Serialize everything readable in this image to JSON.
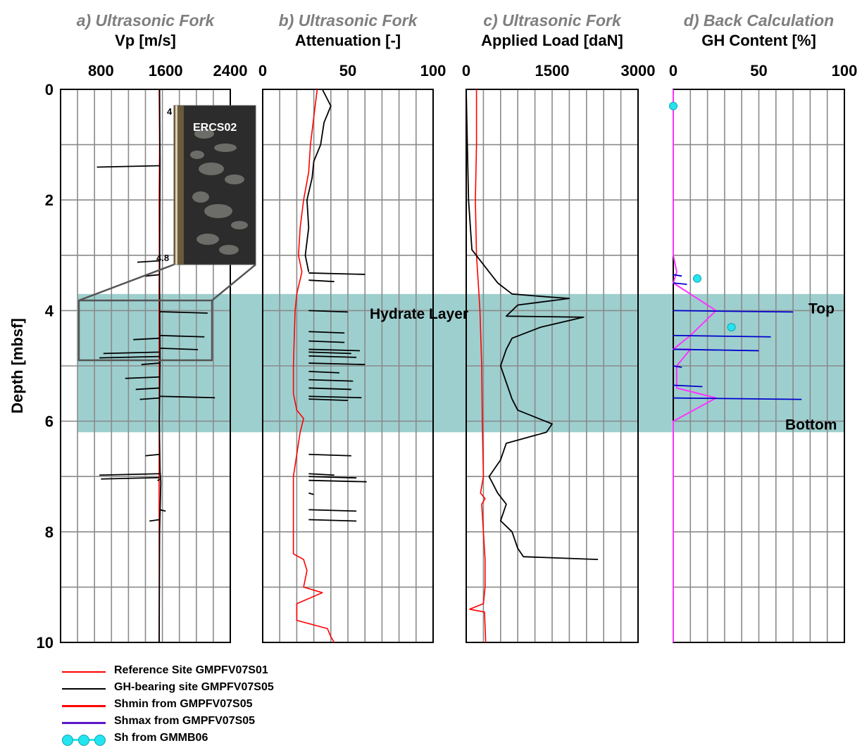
{
  "chart_data": {
    "type": "line",
    "ylabel": "Depth [mbsf]",
    "ylim": [
      10,
      0
    ],
    "yticks": [
      "0",
      "2",
      "4",
      "6",
      "8",
      "10"
    ],
    "annotations": {
      "hydrate_layer": "Hydrate Layer",
      "top": "Top",
      "bottom": "Bottom",
      "hydrate_layer_depth": [
        3.7,
        6.2
      ]
    },
    "inset": {
      "label": "ERCS02",
      "top_label": "4",
      "bottom_label": "4.8"
    },
    "colors": {
      "reference": "#ff0000",
      "gh_bearing": "#000000",
      "shmin": "#ff33ff",
      "shmax": "#0000cc",
      "sh": "#22e5f0",
      "hydrate_band": "#9ecfcf"
    },
    "panels": [
      {
        "id": "a",
        "title": "a) Ultrasonic Fork",
        "subtitle": "Vp [m/s]",
        "xlim": [
          300,
          2400
        ],
        "xticks": [
          "800",
          "1600",
          "2400"
        ],
        "series": [
          {
            "name": "Reference Site GMPFV07S01",
            "points": [
              [
                1520,
                0
              ],
              [
                1525,
                1
              ],
              [
                1520,
                2
              ],
              [
                1522,
                3
              ],
              [
                1518,
                4
              ],
              [
                1520,
                5
              ],
              [
                1521,
                6
              ],
              [
                1519,
                7
              ],
              [
                1520,
                8
              ],
              [
                1521,
                9
              ],
              [
                1520,
                10
              ]
            ]
          },
          {
            "name": "GH-bearing site GMPFV07S05",
            "points": [
              [
                1525,
                0
              ],
              [
                1530,
                1.3
              ],
              [
                1525,
                3.5
              ],
              [
                1530,
                4.9
              ],
              [
                1522,
                6
              ],
              [
                1530,
                6.9
              ],
              [
                1540,
                7.1
              ],
              [
                1525,
                8
              ],
              [
                1520,
                10
              ]
            ],
            "spikes": [
              [
                1.38,
                750
              ],
              [
                3.1,
                1250
              ],
              [
                3.35,
                1350
              ],
              [
                4.02,
                2120
              ],
              [
                4.45,
                2080
              ],
              [
                4.5,
                1200
              ],
              [
                4.68,
                2000
              ],
              [
                4.75,
                830
              ],
              [
                4.83,
                780
              ],
              [
                4.95,
                1300
              ],
              [
                5.2,
                1100
              ],
              [
                5.4,
                1230
              ],
              [
                5.55,
                2210
              ],
              [
                5.58,
                1280
              ],
              [
                6.6,
                1350
              ],
              [
                6.95,
                780
              ],
              [
                7.02,
                800
              ],
              [
                7.05,
                1500
              ],
              [
                7.6,
                1600
              ],
              [
                7.78,
                1400
              ]
            ]
          }
        ]
      },
      {
        "id": "b",
        "title": "b) Ultrasonic Fork",
        "subtitle": "Attenuation [-]",
        "xlim": [
          0,
          100
        ],
        "xticks": [
          "0",
          "50",
          "100"
        ],
        "series": [
          {
            "name": "Reference Site GMPFV07S01",
            "points": [
              [
                32,
                0
              ],
              [
                30,
                0.5
              ],
              [
                28,
                1
              ],
              [
                27,
                1.5
              ],
              [
                24,
                2
              ],
              [
                22,
                2.5
              ],
              [
                21,
                3
              ],
              [
                23,
                3.3
              ],
              [
                20,
                3.7
              ],
              [
                19,
                4
              ],
              [
                18,
                5
              ],
              [
                18,
                5.5
              ],
              [
                20,
                5.8
              ],
              [
                24,
                5.95
              ],
              [
                22,
                6.2
              ],
              [
                20,
                6.6
              ],
              [
                18,
                7
              ],
              [
                18,
                8
              ],
              [
                18,
                8.4
              ],
              [
                24,
                8.5
              ],
              [
                26,
                8.7
              ],
              [
                24,
                9
              ],
              [
                35,
                9.1
              ],
              [
                20,
                9.3
              ],
              [
                20,
                9.6
              ],
              [
                38,
                9.75
              ],
              [
                40,
                9.9
              ],
              [
                42,
                10
              ]
            ]
          },
          {
            "name": "GH-bearing site GMPFV07S05",
            "points": [
              [
                35,
                0
              ],
              [
                40,
                0.3
              ],
              [
                36,
                0.6
              ],
              [
                34,
                1
              ],
              [
                30,
                1.3
              ],
              [
                29,
                1.6
              ],
              [
                26,
                2
              ],
              [
                27,
                2.5
              ],
              [
                25,
                3
              ],
              [
                27,
                3.3
              ]
            ],
            "spikes": [
              [
                3.32,
                60
              ],
              [
                3.45,
                42
              ],
              [
                4.0,
                50
              ],
              [
                4.38,
                48
              ],
              [
                4.55,
                48
              ],
              [
                4.7,
                57
              ],
              [
                4.75,
                52
              ],
              [
                4.82,
                55
              ],
              [
                4.95,
                60
              ],
              [
                5.1,
                45
              ],
              [
                5.25,
                53
              ],
              [
                5.4,
                52
              ],
              [
                5.55,
                58
              ],
              [
                5.6,
                50
              ],
              [
                6.6,
                52
              ],
              [
                6.95,
                42
              ],
              [
                7.0,
                55
              ],
              [
                7.07,
                61
              ],
              [
                7.3,
                30
              ],
              [
                7.6,
                55
              ],
              [
                7.78,
                55
              ]
            ]
          }
        ]
      },
      {
        "id": "c",
        "title": "c) Ultrasonic Fork",
        "subtitle": "Applied Load [daN]",
        "xlim": [
          0,
          3000
        ],
        "xticks": [
          "0",
          "1500",
          "3000"
        ],
        "series": [
          {
            "name": "Reference Site GMPFV07S01",
            "points": [
              [
                180,
                0
              ],
              [
                180,
                1
              ],
              [
                160,
                2
              ],
              [
                180,
                3
              ],
              [
                210,
                3.5
              ],
              [
                240,
                4
              ],
              [
                270,
                5
              ],
              [
                280,
                6
              ],
              [
                300,
                7
              ],
              [
                250,
                7.3
              ],
              [
                330,
                7.4
              ],
              [
                270,
                7.5
              ],
              [
                300,
                8
              ],
              [
                330,
                8.5
              ],
              [
                330,
                9
              ],
              [
                300,
                9.3
              ],
              [
                60,
                9.4
              ],
              [
                320,
                9.45
              ],
              [
                340,
                10
              ]
            ]
          },
          {
            "name": "GH-bearing site GMPFV07S05",
            "points": [
              [
                0,
                0
              ],
              [
                20,
                1
              ],
              [
                40,
                2
              ],
              [
                100,
                2.9
              ],
              [
                250,
                3.1
              ],
              [
                400,
                3.3
              ],
              [
                550,
                3.5
              ],
              [
                800,
                3.7
              ],
              [
                1400,
                3.75
              ],
              [
                1800,
                3.78
              ],
              [
                900,
                3.9
              ],
              [
                700,
                4.1
              ],
              [
                2050,
                4.12
              ],
              [
                1300,
                4.3
              ],
              [
                800,
                4.5
              ],
              [
                700,
                4.7
              ],
              [
                600,
                5
              ],
              [
                700,
                5.3
              ],
              [
                800,
                5.6
              ],
              [
                900,
                5.8
              ],
              [
                1500,
                6.05
              ],
              [
                1400,
                6.2
              ],
              [
                700,
                6.4
              ],
              [
                600,
                6.7
              ],
              [
                400,
                7
              ],
              [
                550,
                7.3
              ],
              [
                700,
                7.5
              ],
              [
                600,
                7.8
              ],
              [
                800,
                8
              ],
              [
                900,
                8.3
              ],
              [
                1000,
                8.45
              ],
              [
                2300,
                8.5
              ]
            ]
          }
        ]
      },
      {
        "id": "d",
        "title": "d) Back Calculation",
        "subtitle": "GH Content [%]",
        "xlim": [
          0,
          100
        ],
        "xticks": [
          "0",
          "50",
          "100"
        ],
        "series": [
          {
            "name": "Shmin from GMPFV07S05",
            "points": [
              [
                0,
                0
              ],
              [
                0,
                3.0
              ],
              [
                2,
                3.3
              ],
              [
                0,
                3.5
              ],
              [
                25,
                4.0
              ],
              [
                10,
                4.45
              ],
              [
                0,
                4.7
              ],
              [
                10,
                4.7
              ],
              [
                2,
                5.0
              ],
              [
                2,
                5.4
              ],
              [
                25,
                5.58
              ],
              [
                0,
                6
              ],
              [
                0,
                10
              ]
            ]
          },
          {
            "name": "Shmax from GMPFV07S05",
            "spikes": [
              [
                3.35,
                5
              ],
              [
                3.5,
                8
              ],
              [
                4.0,
                70
              ],
              [
                4.45,
                57
              ],
              [
                4.7,
                50
              ],
              [
                5.0,
                5
              ],
              [
                5.35,
                17
              ],
              [
                5.58,
                75
              ]
            ]
          },
          {
            "name": "Sh from GMMB06",
            "points": [
              [
                0,
                0.3
              ],
              [
                14,
                3.42
              ],
              [
                34,
                4.3
              ]
            ]
          }
        ]
      }
    ]
  },
  "legend": [
    {
      "label": "Reference Site GMPFV07S01",
      "color": "#ff0000",
      "kind": "line"
    },
    {
      "label": "GH-bearing site GMPFV07S05",
      "color": "#000000",
      "kind": "line"
    },
    {
      "label": "Shmin from GMPFV07S05",
      "color": "#ff0000",
      "kind": "thick-line"
    },
    {
      "label": "Shmax from GMPFV07S05",
      "color": "#5a16c8",
      "kind": "thick-line"
    },
    {
      "label": "Sh from GMMB06",
      "color": "#22e5f0",
      "kind": "markers"
    }
  ]
}
